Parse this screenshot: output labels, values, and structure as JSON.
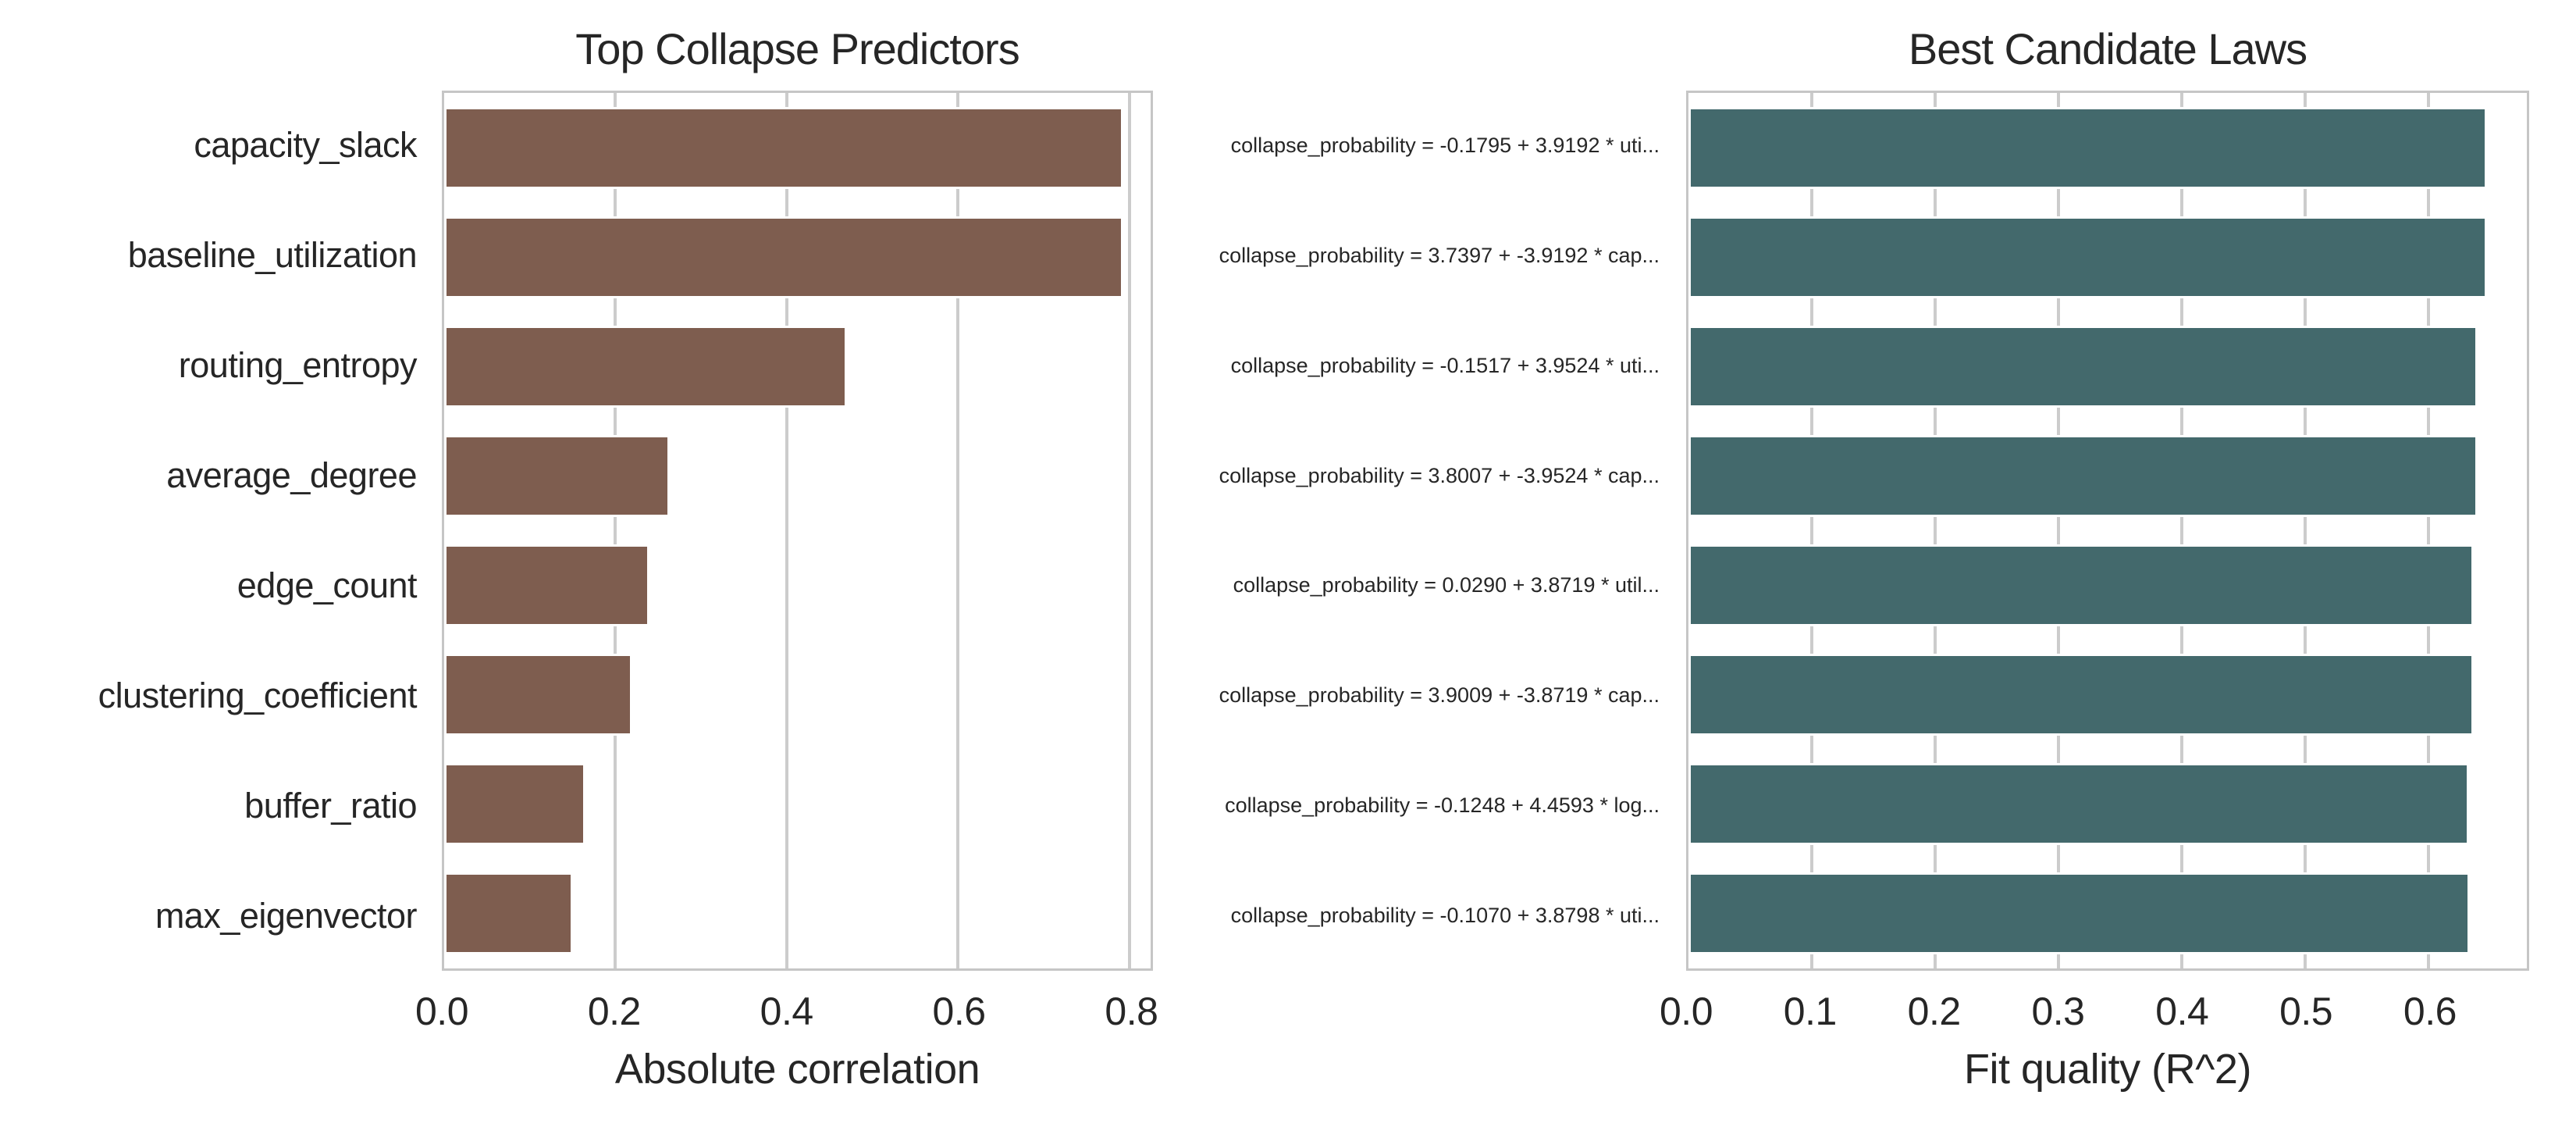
{
  "figure": {
    "background": "#ffffff",
    "text_color": "#262626",
    "grid_color": "#cccccc",
    "spine_color": "#c6c6c6",
    "bar_edge_color": "#ffffff"
  },
  "chart_data": [
    {
      "type": "bar",
      "orientation": "horizontal",
      "title": "Top Collapse Predictors",
      "xlabel": "Absolute correlation",
      "ylabel": "",
      "bar_color": "#7E5D4F",
      "grid": true,
      "legend": "none",
      "xlim": [
        0,
        0.825
      ],
      "xticks": [
        0.0,
        0.2,
        0.4,
        0.6,
        0.8
      ],
      "xtick_labels": [
        "0.0",
        "0.2",
        "0.4",
        "0.6",
        "0.8"
      ],
      "categories": [
        "capacity_slack",
        "baseline_utilization",
        "routing_entropy",
        "average_degree",
        "edge_count",
        "clustering_coefficient",
        "buffer_ratio",
        "max_eigenvector"
      ],
      "values": [
        0.793,
        0.793,
        0.47,
        0.263,
        0.24,
        0.22,
        0.165,
        0.15
      ]
    },
    {
      "type": "bar",
      "orientation": "horizontal",
      "title": "Best Candidate Laws",
      "xlabel": "Fit quality (R^2)",
      "ylabel": "",
      "bar_color": "#43696C",
      "grid": true,
      "legend": "none",
      "xlim": [
        0,
        0.68
      ],
      "xticks": [
        0.0,
        0.1,
        0.2,
        0.3,
        0.4,
        0.5,
        0.6
      ],
      "xtick_labels": [
        "0.0",
        "0.1",
        "0.2",
        "0.3",
        "0.4",
        "0.5",
        "0.6"
      ],
      "categories": [
        "collapse_probability = -0.1795 + 3.9192 * uti...",
        "collapse_probability = 3.7397 + -3.9192 * cap...",
        "collapse_probability = -0.1517 + 3.9524 * uti...",
        "collapse_probability = 3.8007 + -3.9524 * cap...",
        "collapse_probability = 0.0290 + 3.8719 * util...",
        "collapse_probability = 3.9009 + -3.8719 * cap...",
        "collapse_probability = -0.1248 + 4.4593 * log...",
        "collapse_probability = -0.1070 + 3.8798 * uti..."
      ],
      "values": [
        0.648,
        0.648,
        0.64,
        0.64,
        0.637,
        0.637,
        0.633,
        0.634
      ]
    }
  ]
}
